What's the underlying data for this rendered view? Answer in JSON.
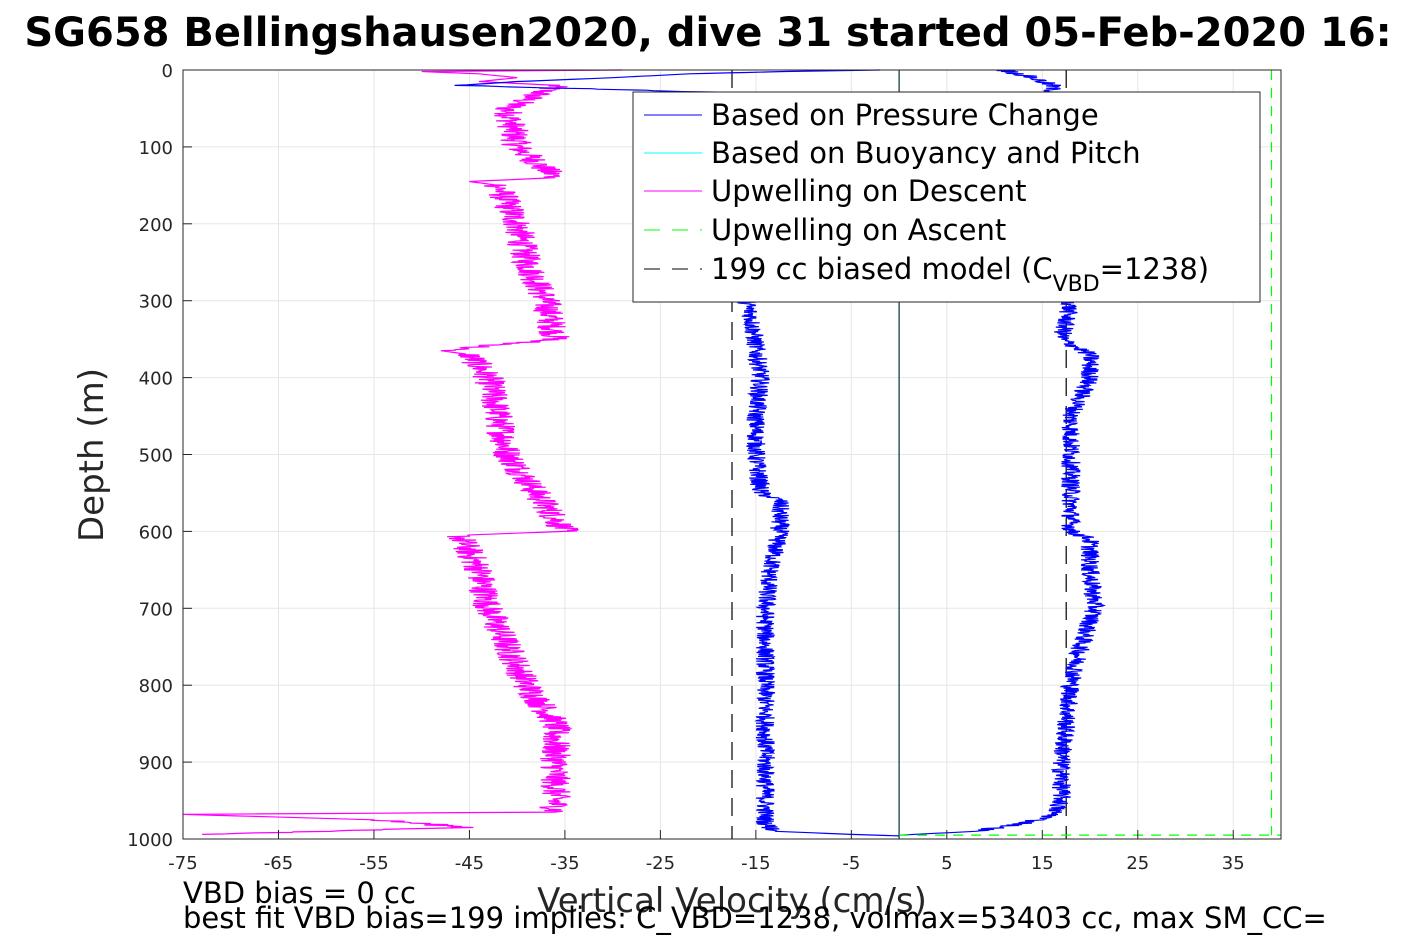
{
  "chart_data": {
    "type": "line",
    "title": "SG658 Bellingshausen2020, dive 31 started 05-Feb-2020 16:",
    "xlabel": "Vertical Velocity (cm/s)",
    "ylabel": "Depth (m)",
    "xlim": [
      -75,
      40
    ],
    "ylim": [
      0,
      1000
    ],
    "y_reversed": true,
    "grid": true,
    "x_ticks": [
      -75,
      -65,
      -55,
      -45,
      -35,
      -25,
      -15,
      -5,
      5,
      15,
      25,
      35
    ],
    "y_ticks": [
      0,
      100,
      200,
      300,
      400,
      500,
      600,
      700,
      800,
      900,
      1000
    ],
    "legend_position": "top-right",
    "legend": [
      {
        "label": "Based on Pressure Change",
        "color": "#0000ff",
        "style": "solid"
      },
      {
        "label": "Based on Buoyancy and Pitch",
        "color": "#00ffff",
        "style": "solid"
      },
      {
        "label": "Upwelling on Descent",
        "color": "#ff00ff",
        "style": "solid"
      },
      {
        "label": "Upwelling on Ascent",
        "color": "#00ff00",
        "style": "dashed"
      },
      {
        "label_pre": "199 cc biased model (C",
        "label_sub": "VBD",
        "label_post": "=1238)",
        "color": "#000000",
        "style": "dashed"
      }
    ],
    "series": [
      {
        "name": "Based on Pressure Change",
        "color": "#0000ff",
        "segments": [
          {
            "part": "descent",
            "depth": [
              0,
              2,
              5,
              10,
              15,
              20,
              30,
              300,
              320,
              360,
              400,
              450,
              500,
              550,
              560,
              600,
              650,
              700,
              750,
              800,
              850,
              900,
              950,
              980,
              990,
              994,
              996
            ],
            "velocity": [
              -2,
              -12,
              -22,
              -30,
              -40,
              -46,
              -16,
              -16,
              -15.5,
              -15,
              -14.5,
              -15,
              -15,
              -14.5,
              -12.5,
              -12.5,
              -13.5,
              -14,
              -14,
              -14,
              -14,
              -14,
              -14,
              -14,
              -13,
              -5,
              0
            ]
          },
          {
            "part": "ascent",
            "depth": [
              0,
              10,
              20,
              300,
              350,
              370,
              400,
              450,
              500,
              550,
              600,
              610,
              650,
              700,
              750,
              800,
              850,
              900,
              950,
              970,
              980,
              990,
              995
            ],
            "velocity": [
              11,
              14,
              16,
              18,
              17,
              20,
              20,
              18,
              18,
              18,
              18,
              20,
              20,
              20.5,
              19,
              18,
              17.5,
              17,
              17,
              16,
              13,
              8,
              0
            ]
          }
        ]
      },
      {
        "name": "Based on Buoyancy and Pitch",
        "color": "#00ffff",
        "depth": [
          0,
          1000
        ],
        "velocity": [
          0,
          0
        ]
      },
      {
        "name": "Upwelling on Descent",
        "color": "#ff00ff",
        "depth": [
          0,
          2,
          5,
          10,
          15,
          20,
          50,
          100,
          140,
          145,
          150,
          200,
          250,
          300,
          350,
          365,
          370,
          400,
          450,
          500,
          550,
          600,
          605,
          650,
          700,
          750,
          800,
          850,
          900,
          950,
          965,
          968,
          975,
          985,
          994
        ],
        "velocity": [
          -29,
          -50,
          -44,
          -40,
          -44,
          -36,
          -41,
          -40,
          -36,
          -45,
          -42,
          -40,
          -39,
          -37,
          -36,
          -48,
          -45,
          -43,
          -42,
          -41,
          -38,
          -35,
          -46,
          -44,
          -43,
          -41,
          -39,
          -36,
          -36,
          -36,
          -36,
          -75,
          -55,
          -45,
          -73
        ]
      },
      {
        "name": "Upwelling on Ascent",
        "color": "#00ff00",
        "depth": [
          0,
          995
        ],
        "velocity": [
          39,
          39
        ]
      },
      {
        "name": "199 cc biased model",
        "color": "#000000",
        "segments": [
          {
            "depth": [
              0,
              1000
            ],
            "velocity": [
              -17.5,
              -17.5
            ]
          },
          {
            "depth": [
              0,
              1000
            ],
            "velocity": [
              17.5,
              17.5
            ]
          }
        ]
      }
    ]
  },
  "footer": {
    "line1": "VBD bias = 0 cc",
    "line2": "best fit VBD bias=199 implies: C_VBD=1238, volmax=53403 cc, max SM_CC="
  }
}
